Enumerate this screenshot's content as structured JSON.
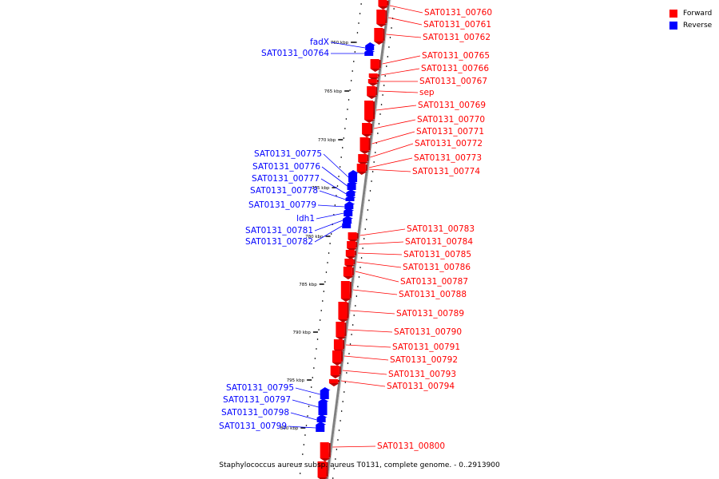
{
  "legend": {
    "forward_label": "Forward",
    "reverse_label": "Reverse",
    "forward_color": "#ff0000",
    "reverse_color": "#0000ff"
  },
  "colors": {
    "forward_fill": "#ff0000",
    "forward_dark": "#bb0000",
    "reverse_fill": "#0000ff",
    "reverse_dark": "#0000aa",
    "axis": "#808080",
    "label_line_fwd": "#ff0000",
    "label_line_rev": "#0000ff"
  },
  "caption": "Staphylococcus aureus subsp. aureus T0131, complete genome. - 0..2913900",
  "scale": {
    "ticks": [
      "760 kbp",
      "765 kbp",
      "770 kbp",
      "775 kbp",
      "780 kbp",
      "785 kbp",
      "790 kbp",
      "795 kbp",
      "800 kbp"
    ]
  },
  "genes": {
    "forward": [
      "SAT0131_00760",
      "SAT0131_00761",
      "SAT0131_00762",
      "SAT0131_00765",
      "SAT0131_00766",
      "SAT0131_00767",
      "sep",
      "SAT0131_00769",
      "SAT0131_00770",
      "SAT0131_00771",
      "SAT0131_00772",
      "SAT0131_00773",
      "SAT0131_00774",
      "SAT0131_00783",
      "SAT0131_00784",
      "SAT0131_00785",
      "SAT0131_00786",
      "SAT0131_00787",
      "SAT0131_00788",
      "SAT0131_00789",
      "SAT0131_00790",
      "SAT0131_00791",
      "SAT0131_00792",
      "SAT0131_00793",
      "SAT0131_00794",
      "SAT0131_00800"
    ],
    "reverse": [
      "fadX",
      "SAT0131_00764",
      "SAT0131_00775",
      "SAT0131_00776",
      "SAT0131_00777",
      "SAT0131_00778",
      "SAT0131_00779",
      "ldh1",
      "SAT0131_00781",
      "SAT0131_00782",
      "SAT0131_00795",
      "SAT0131_00797",
      "SAT0131_00798",
      "SAT0131_00799"
    ]
  }
}
